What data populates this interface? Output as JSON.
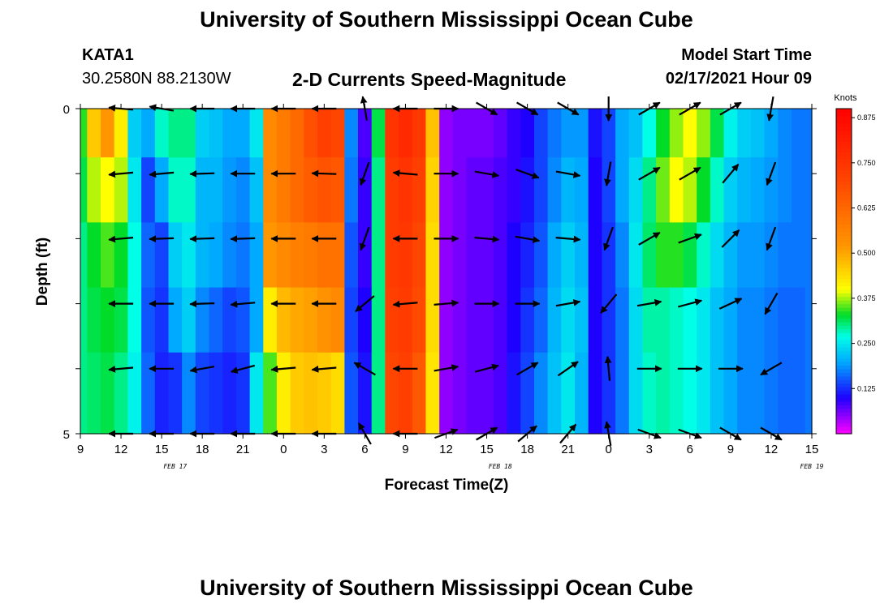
{
  "header": {
    "title": "University of Southern Mississippi Ocean Cube",
    "station_id": "KATA1",
    "coordinates": "30.2580N 88.2130W",
    "subtitle": "2-D Currents Speed-Magnitude",
    "model_start_label": "Model Start Time",
    "model_start_value": "02/17/2021 Hour 09"
  },
  "footer": {
    "title": "University of Southern Mississippi Ocean Cube"
  },
  "chart_data": {
    "type": "heatmap",
    "title": "2-D Currents Speed-Magnitude",
    "xlabel": "Forecast Time(Z)",
    "ylabel": "Depth (ft)",
    "x_start_hour": 9,
    "x_end_hour": 63,
    "x_ticks": [
      "9",
      "12",
      "15",
      "18",
      "21",
      "0",
      "3",
      "6",
      "9",
      "12",
      "15",
      "18",
      "21",
      "0",
      "3",
      "6",
      "9",
      "12",
      "15"
    ],
    "x_tick_hours": [
      9,
      12,
      15,
      18,
      21,
      24,
      27,
      30,
      33,
      36,
      39,
      42,
      45,
      48,
      51,
      54,
      57,
      60,
      63
    ],
    "date_labels": [
      {
        "text": "FEB 17",
        "hour": 16
      },
      {
        "text": "FEB 18",
        "hour": 40
      },
      {
        "text": "FEB 19",
        "hour": 64
      }
    ],
    "y_ticks": [
      "0",
      "5"
    ],
    "ylim": [
      0,
      5
    ],
    "y_reversed": true,
    "colorbar": {
      "unit": "Knots",
      "min": 0.0,
      "max": 0.9,
      "ticks": [
        "0.875",
        "0.750",
        "0.625",
        "0.500",
        "0.375",
        "0.250",
        "0.125"
      ],
      "tick_values": [
        0.875,
        0.75,
        0.625,
        0.5,
        0.375,
        0.25,
        0.125
      ]
    },
    "column_hours": [
      9,
      10,
      11,
      12,
      13,
      14,
      15,
      16,
      17,
      18,
      19,
      20,
      21,
      22,
      23,
      24,
      25,
      26,
      27,
      28,
      29,
      30,
      31,
      32,
      33,
      34,
      35,
      36,
      37,
      38,
      39,
      40,
      41,
      42,
      43,
      44,
      45,
      46,
      47,
      48,
      49,
      50,
      51,
      52,
      53,
      54,
      55,
      56,
      57,
      58,
      59,
      60,
      61,
      62,
      63
    ],
    "depth_levels": [
      0.25,
      1.25,
      2.25,
      3.25,
      4.25
    ],
    "speed_knots": [
      [
        0.34,
        0.46,
        0.52,
        0.42,
        0.23,
        0.2,
        0.28,
        0.3,
        0.3,
        0.23,
        0.22,
        0.2,
        0.2,
        0.25,
        0.55,
        0.58,
        0.62,
        0.68,
        0.72,
        0.7,
        0.18,
        0.08,
        0.32,
        0.75,
        0.78,
        0.74,
        0.47,
        0.05,
        0.06,
        0.06,
        0.06,
        0.07,
        0.09,
        0.1,
        0.14,
        0.17,
        0.19,
        0.19,
        0.11,
        0.14,
        0.2,
        0.22,
        0.27,
        0.33,
        0.37,
        0.4,
        0.37,
        0.32,
        0.26,
        0.23,
        0.22,
        0.2,
        0.18,
        0.17,
        0.17
      ],
      [
        0.32,
        0.38,
        0.4,
        0.38,
        0.25,
        0.14,
        0.2,
        0.28,
        0.28,
        0.21,
        0.21,
        0.19,
        0.18,
        0.22,
        0.55,
        0.58,
        0.62,
        0.65,
        0.67,
        0.66,
        0.17,
        0.09,
        0.3,
        0.73,
        0.75,
        0.72,
        0.45,
        0.05,
        0.06,
        0.07,
        0.07,
        0.08,
        0.09,
        0.11,
        0.14,
        0.18,
        0.21,
        0.2,
        0.1,
        0.14,
        0.2,
        0.24,
        0.3,
        0.36,
        0.4,
        0.38,
        0.33,
        0.28,
        0.23,
        0.21,
        0.2,
        0.19,
        0.18,
        0.17,
        0.17
      ],
      [
        0.3,
        0.33,
        0.35,
        0.33,
        0.27,
        0.16,
        0.14,
        0.23,
        0.25,
        0.21,
        0.2,
        0.18,
        0.17,
        0.2,
        0.52,
        0.55,
        0.57,
        0.58,
        0.6,
        0.6,
        0.15,
        0.09,
        0.3,
        0.73,
        0.74,
        0.7,
        0.44,
        0.05,
        0.06,
        0.07,
        0.07,
        0.08,
        0.1,
        0.12,
        0.15,
        0.2,
        0.23,
        0.21,
        0.1,
        0.13,
        0.18,
        0.25,
        0.31,
        0.34,
        0.34,
        0.32,
        0.28,
        0.24,
        0.21,
        0.19,
        0.19,
        0.18,
        0.17,
        0.17,
        0.17
      ],
      [
        0.3,
        0.32,
        0.33,
        0.32,
        0.27,
        0.15,
        0.13,
        0.2,
        0.23,
        0.18,
        0.16,
        0.14,
        0.15,
        0.2,
        0.42,
        0.48,
        0.5,
        0.51,
        0.53,
        0.55,
        0.14,
        0.1,
        0.3,
        0.72,
        0.73,
        0.69,
        0.44,
        0.05,
        0.06,
        0.07,
        0.07,
        0.08,
        0.1,
        0.13,
        0.16,
        0.21,
        0.24,
        0.22,
        0.1,
        0.13,
        0.17,
        0.24,
        0.29,
        0.29,
        0.28,
        0.27,
        0.25,
        0.22,
        0.2,
        0.18,
        0.18,
        0.17,
        0.16,
        0.16,
        0.17
      ],
      [
        0.3,
        0.31,
        0.32,
        0.3,
        0.26,
        0.16,
        0.12,
        0.13,
        0.18,
        0.14,
        0.13,
        0.12,
        0.13,
        0.25,
        0.35,
        0.42,
        0.46,
        0.47,
        0.46,
        0.44,
        0.15,
        0.11,
        0.3,
        0.7,
        0.72,
        0.66,
        0.43,
        0.05,
        0.06,
        0.07,
        0.07,
        0.08,
        0.11,
        0.14,
        0.18,
        0.22,
        0.25,
        0.21,
        0.1,
        0.13,
        0.17,
        0.24,
        0.28,
        0.29,
        0.28,
        0.27,
        0.25,
        0.22,
        0.2,
        0.18,
        0.18,
        0.17,
        0.16,
        0.16,
        0.17
      ]
    ],
    "vector_hours": [
      12,
      15,
      18,
      21,
      24,
      27,
      30,
      33,
      36,
      39,
      42,
      45,
      48,
      51,
      54,
      57,
      60
    ],
    "vector_depths": [
      0.0,
      1.0,
      2.0,
      3.0,
      4.0,
      5.0
    ],
    "vector_direction_deg": [
      [
        275,
        280,
        270,
        270,
        270,
        270,
        350,
        270,
        90,
        120,
        120,
        120,
        180,
        60,
        60,
        60,
        190
      ],
      [
        265,
        265,
        268,
        270,
        270,
        272,
        200,
        275,
        90,
        100,
        110,
        100,
        190,
        60,
        60,
        40,
        200
      ],
      [
        265,
        268,
        268,
        268,
        270,
        270,
        200,
        270,
        90,
        95,
        100,
        95,
        200,
        60,
        70,
        45,
        200
      ],
      [
        270,
        270,
        268,
        265,
        270,
        270,
        230,
        265,
        85,
        90,
        90,
        80,
        220,
        80,
        75,
        65,
        210
      ],
      [
        265,
        270,
        260,
        255,
        265,
        265,
        300,
        270,
        80,
        75,
        60,
        55,
        355,
        90,
        90,
        90,
        240
      ],
      [
        270,
        270,
        270,
        270,
        270,
        270,
        330,
        270,
        70,
        60,
        50,
        40,
        350,
        110,
        110,
        120,
        120
      ]
    ]
  }
}
